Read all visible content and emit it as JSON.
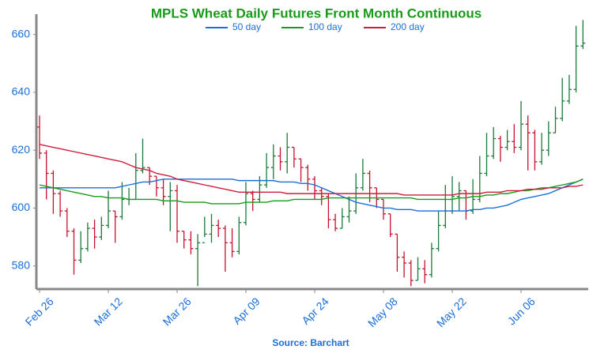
{
  "chart_data": {
    "type": "ohlc",
    "title": "MPLS Wheat Daily Futures Front Month Continuous",
    "source": "Source: Barchart",
    "categories": [
      "Feb 26",
      null,
      null,
      null,
      null,
      null,
      null,
      null,
      null,
      null,
      "Mar 12",
      null,
      null,
      null,
      null,
      null,
      null,
      null,
      null,
      null,
      "Mar 26",
      null,
      null,
      null,
      null,
      null,
      null,
      null,
      null,
      null,
      "Apr 09",
      null,
      null,
      null,
      null,
      null,
      null,
      null,
      null,
      null,
      "Apr 24",
      null,
      null,
      null,
      null,
      null,
      null,
      null,
      null,
      null,
      "May 08",
      null,
      null,
      null,
      null,
      null,
      null,
      null,
      null,
      null,
      "May 22",
      null,
      null,
      null,
      null,
      null,
      null,
      null,
      null,
      null,
      "Jun 06",
      null,
      null,
      null,
      null,
      null,
      null,
      null,
      null,
      null
    ],
    "ohlc": {
      "open": [
        628,
        619,
        612,
        605,
        599,
        592,
        582,
        586,
        593,
        590,
        594,
        599,
        597,
        603,
        603,
        613,
        614,
        611,
        607,
        604,
        606,
        592,
        589,
        586,
        588,
        591,
        594,
        593,
        588,
        585,
        595,
        605,
        603,
        608,
        614,
        618,
        616,
        621,
        617,
        614,
        610,
        606,
        604,
        596,
        593,
        597,
        599,
        607,
        612,
        607,
        603,
        598,
        591,
        583,
        581,
        575,
        579,
        577,
        586,
        594,
        599,
        604,
        606,
        599,
        603,
        612,
        618,
        624,
        621,
        623,
        621,
        629,
        626,
        616,
        620,
        626,
        631,
        637,
        641,
        656
      ],
      "high": [
        632,
        620,
        613,
        606,
        600,
        593,
        592,
        595,
        596,
        597,
        606,
        599,
        609,
        607,
        619,
        624,
        614,
        611,
        610,
        609,
        608,
        592,
        592,
        591,
        597,
        598,
        596,
        594,
        593,
        597,
        609,
        606,
        611,
        619,
        622,
        621,
        626,
        621,
        617,
        615,
        611,
        607,
        605,
        598,
        600,
        604,
        612,
        617,
        613,
        607,
        603,
        598,
        591,
        585,
        582,
        583,
        582,
        588,
        599,
        608,
        611,
        609,
        606,
        610,
        618,
        626,
        628,
        625,
        627,
        629,
        637,
        632,
        627,
        626,
        630,
        635,
        645,
        646,
        663,
        665
      ],
      "low": [
        617,
        603,
        598,
        597,
        590,
        577,
        581,
        585,
        586,
        589,
        593,
        588,
        596,
        601,
        603,
        612,
        608,
        604,
        601,
        592,
        588,
        586,
        584,
        573,
        590,
        588,
        590,
        578,
        583,
        584,
        594,
        599,
        602,
        607,
        610,
        613,
        612,
        614,
        609,
        606,
        603,
        601,
        593,
        592,
        593,
        595,
        598,
        606,
        602,
        600,
        596,
        590,
        578,
        576,
        573,
        575,
        574,
        576,
        585,
        593,
        598,
        599,
        596,
        598,
        602,
        611,
        617,
        616,
        620,
        619,
        620,
        613,
        613,
        615,
        618,
        626,
        630,
        636,
        640,
        655
      ],
      "close": [
        619,
        612,
        605,
        599,
        592,
        582,
        586,
        593,
        590,
        594,
        599,
        597,
        603,
        603,
        613,
        614,
        611,
        607,
        604,
        606,
        592,
        589,
        586,
        588,
        591,
        594,
        593,
        588,
        585,
        595,
        605,
        603,
        608,
        614,
        618,
        616,
        621,
        617,
        614,
        610,
        606,
        604,
        596,
        593,
        597,
        599,
        607,
        612,
        607,
        603,
        598,
        591,
        583,
        581,
        575,
        579,
        577,
        586,
        594,
        599,
        604,
        606,
        599,
        603,
        612,
        618,
        624,
        621,
        623,
        621,
        629,
        626,
        616,
        620,
        626,
        631,
        637,
        641,
        656,
        657
      ],
      "up_color": "#1a7a3a",
      "down_color": "#c8102e"
    },
    "series": [
      {
        "name": "50 day",
        "color": "#1a6fd8",
        "values": [
          607,
          607,
          607,
          607,
          607,
          607,
          607,
          607,
          607,
          607,
          607,
          607,
          607.5,
          608,
          608.5,
          609,
          609,
          609.5,
          610,
          610,
          610,
          610,
          610,
          610,
          610,
          610,
          610,
          610,
          610,
          609.5,
          609.5,
          609.5,
          609.5,
          609.5,
          609.5,
          609,
          609,
          609,
          608.5,
          608.5,
          608,
          607,
          606,
          605,
          604,
          603,
          602,
          601.5,
          601,
          600.5,
          600,
          600,
          599.5,
          599.5,
          599.5,
          599,
          599,
          599,
          599,
          599,
          599,
          599,
          599,
          599.5,
          599.5,
          600,
          600,
          600.5,
          601,
          602,
          603,
          603.5,
          604,
          604.5,
          605,
          606,
          607,
          608,
          609,
          610
        ]
      },
      {
        "name": "100 day",
        "color": "#1a9a1a",
        "values": [
          608,
          607.5,
          607,
          606.5,
          606,
          605.5,
          605,
          604.5,
          604,
          604,
          603.5,
          603.5,
          603.5,
          603,
          603,
          603,
          603,
          603,
          602.5,
          602.5,
          602.5,
          602,
          602,
          602,
          602,
          601.5,
          601.5,
          601.5,
          601.5,
          601.5,
          602,
          602,
          602,
          602,
          602.5,
          602.5,
          602.5,
          603,
          603,
          603,
          603,
          603,
          603.5,
          603.5,
          603.5,
          603.5,
          603.5,
          603.5,
          603.5,
          603.5,
          603.5,
          603.5,
          603.5,
          603.5,
          603.5,
          603,
          603,
          603,
          603,
          603,
          603,
          603.5,
          603.5,
          604,
          604,
          604.5,
          604.5,
          605,
          605,
          605.5,
          606,
          606,
          606.5,
          607,
          607,
          607.5,
          608,
          608.5,
          609,
          610
        ]
      },
      {
        "name": "200 day",
        "color": "#d01c3c",
        "values": [
          622,
          621.5,
          621,
          620.5,
          620,
          619.5,
          619,
          618.5,
          618,
          617.5,
          617,
          616.5,
          616,
          615,
          614,
          613.5,
          613,
          612,
          611.5,
          611,
          610,
          609.5,
          609,
          608.5,
          608,
          607.5,
          607,
          606.5,
          606,
          605.5,
          605.5,
          605.5,
          605.5,
          605.5,
          605.5,
          605.5,
          605,
          605,
          605,
          605,
          605,
          605,
          605,
          605,
          605,
          605,
          605,
          605,
          605,
          605,
          605,
          605,
          605,
          604.5,
          604.5,
          604.5,
          604.5,
          604.5,
          604.5,
          604.5,
          604.5,
          605,
          605,
          605,
          605,
          605.5,
          605.5,
          605.5,
          606,
          606,
          606,
          606.5,
          606.5,
          606.5,
          607,
          607,
          607,
          607.5,
          607.5,
          608
        ]
      }
    ],
    "ylim": [
      572,
      667
    ],
    "yticks": [
      580,
      600,
      620,
      640,
      660
    ]
  }
}
